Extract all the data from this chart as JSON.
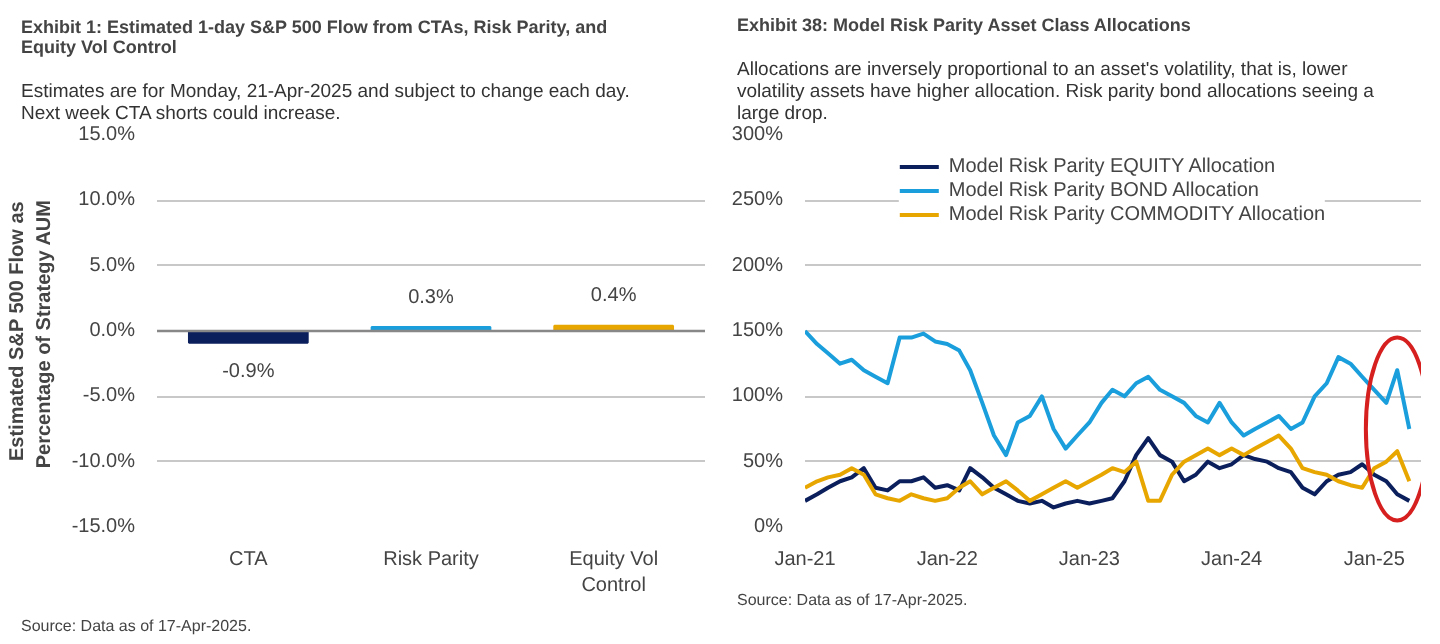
{
  "chart_data": [
    {
      "type": "bar",
      "title": "Exhibit 1: Estimated 1-day S&P 500 Flow from CTAs, Risk Parity, and\nEquity Vol Control",
      "subtitle": "Estimates are for Monday, 21-Apr-2025 and subject to change each day.\nNext week CTA shorts could increase.",
      "ylabel": "Estimated S&P 500 Flow as\nPercentage  of Strategy AUM",
      "categories": [
        "CTA",
        "Risk Parity",
        "Equity Vol\nControl"
      ],
      "values": [
        -0.9,
        0.3,
        0.4
      ],
      "colors": [
        "#0b1f5c",
        "#1a9fdc",
        "#e8a600"
      ],
      "value_labels": [
        "-0.9%",
        "0.3%",
        "0.4%"
      ],
      "ylim": [
        -15,
        15
      ],
      "yticks": [
        {
          "value": -15,
          "label": "-15.0%"
        },
        {
          "value": -10,
          "label": "-10.0%"
        },
        {
          "value": -5,
          "label": "-5.0%"
        },
        {
          "value": 0,
          "label": "0.0%"
        },
        {
          "value": 5,
          "label": "5.0%"
        },
        {
          "value": 10,
          "label": "10.0%"
        },
        {
          "value": 15,
          "label": "15.0%"
        }
      ],
      "grid": "y",
      "annotations": [
        "Source: Data as of 17-Apr-2025."
      ]
    },
    {
      "type": "line",
      "title": "Exhibit 38: Model Risk Parity Asset Class Allocations",
      "subtitle": "Allocations are inversely proportional to an asset's volatility, that is, lower\nvolatility assets have higher allocation.  Risk parity bond allocations seeing a\nlarge drop.",
      "x": [
        "2021-01",
        "2021-02",
        "2021-03",
        "2021-04",
        "2021-05",
        "2021-06",
        "2021-07",
        "2021-08",
        "2021-09",
        "2021-10",
        "2021-11",
        "2021-12",
        "2022-01",
        "2022-02",
        "2022-03",
        "2022-04",
        "2022-05",
        "2022-06",
        "2022-07",
        "2022-08",
        "2022-09",
        "2022-10",
        "2022-11",
        "2022-12",
        "2023-01",
        "2023-02",
        "2023-03",
        "2023-04",
        "2023-05",
        "2023-06",
        "2023-07",
        "2023-08",
        "2023-09",
        "2023-10",
        "2023-11",
        "2023-12",
        "2024-01",
        "2024-02",
        "2024-03",
        "2024-04",
        "2024-05",
        "2024-06",
        "2024-07",
        "2024-08",
        "2024-09",
        "2024-10",
        "2024-11",
        "2024-12",
        "2025-01",
        "2025-02",
        "2025-03",
        "2025-04"
      ],
      "series": [
        {
          "name": "Model Risk Parity EQUITY Allocation",
          "color": "#0b1f5c",
          "values": [
            20,
            25,
            30,
            35,
            38,
            45,
            30,
            28,
            35,
            35,
            38,
            30,
            32,
            28,
            45,
            38,
            30,
            25,
            20,
            18,
            20,
            15,
            18,
            20,
            18,
            20,
            22,
            35,
            55,
            68,
            55,
            50,
            35,
            40,
            50,
            45,
            48,
            55,
            52,
            50,
            45,
            42,
            30,
            25,
            35,
            40,
            42,
            48,
            40,
            35,
            25,
            20
          ]
        },
        {
          "name": "Model Risk Parity BOND Allocation",
          "color": "#1a9fdc",
          "values": [
            150,
            140,
            133,
            125,
            128,
            120,
            115,
            110,
            145,
            145,
            148,
            142,
            140,
            135,
            120,
            95,
            70,
            55,
            80,
            85,
            100,
            75,
            60,
            70,
            80,
            95,
            105,
            100,
            110,
            115,
            105,
            100,
            95,
            85,
            80,
            95,
            80,
            70,
            75,
            80,
            85,
            75,
            80,
            100,
            110,
            130,
            125,
            115,
            105,
            95,
            120,
            75
          ]
        },
        {
          "name": "Model Risk Parity COMMODITY Allocation",
          "color": "#e8a600",
          "values": [
            30,
            35,
            38,
            40,
            45,
            40,
            25,
            22,
            20,
            25,
            22,
            20,
            22,
            30,
            35,
            25,
            30,
            35,
            28,
            20,
            25,
            30,
            35,
            30,
            35,
            40,
            45,
            42,
            50,
            20,
            20,
            40,
            50,
            55,
            60,
            55,
            60,
            55,
            60,
            65,
            70,
            60,
            45,
            42,
            40,
            35,
            32,
            30,
            45,
            50,
            58,
            35
          ]
        }
      ],
      "xlim": [
        "2021-01",
        "2025-05"
      ],
      "xticks": [
        {
          "value": "2021-01",
          "label": "Jan-21"
        },
        {
          "value": "2022-01",
          "label": "Jan-22"
        },
        {
          "value": "2023-01",
          "label": "Jan-23"
        },
        {
          "value": "2024-01",
          "label": "Jan-24"
        },
        {
          "value": "2025-01",
          "label": "Jan-25"
        }
      ],
      "ylim": [
        0,
        300
      ],
      "yticks": [
        {
          "value": 0,
          "label": "0%"
        },
        {
          "value": 50,
          "label": "50%"
        },
        {
          "value": 100,
          "label": "100%"
        },
        {
          "value": 150,
          "label": "150%"
        },
        {
          "value": 200,
          "label": "200%"
        },
        {
          "value": 250,
          "label": "250%"
        },
        {
          "value": 300,
          "label": "300%"
        }
      ],
      "grid": "y",
      "legend": "top",
      "marker": "none",
      "line_style": "solid",
      "annotations": [
        "Source: Data as of 17-Apr-2025."
      ]
    }
  ]
}
